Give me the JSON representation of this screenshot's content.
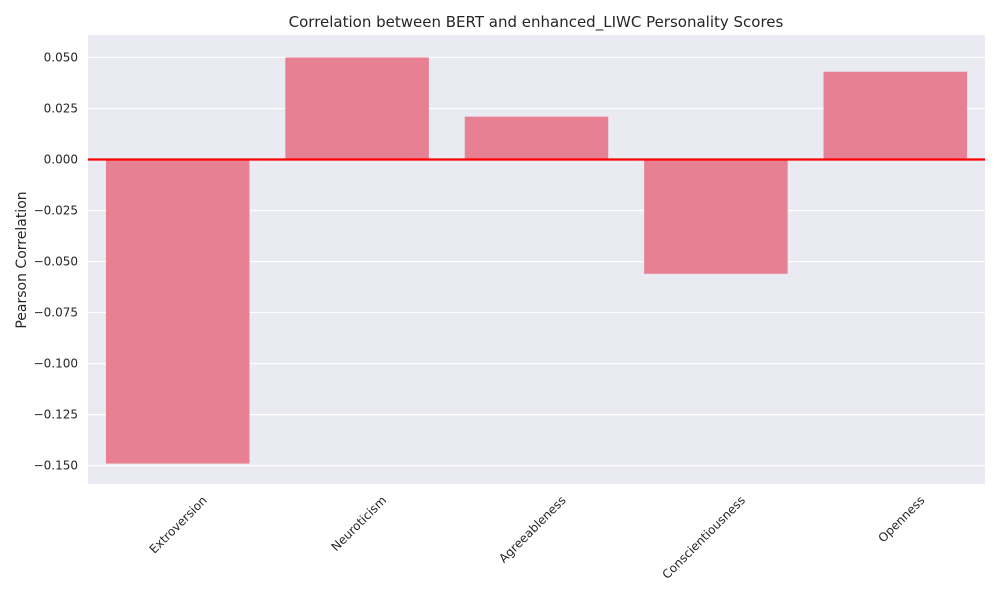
{
  "chart_data": {
    "type": "bar",
    "title": "Correlation between BERT and enhanced_LIWC Personality Scores",
    "xlabel": "",
    "ylabel": "Pearson Correlation",
    "categories": [
      "Extroversion",
      "Neuroticism",
      "Agreeableness",
      "Conscientiousness",
      "Openness"
    ],
    "values": [
      -0.149,
      0.05,
      0.021,
      -0.056,
      0.043
    ],
    "ylim": [
      -0.159,
      0.061
    ],
    "yticks": [
      0.05,
      0.025,
      0.0,
      -0.025,
      -0.05,
      -0.075,
      -0.1,
      -0.125,
      -0.15
    ],
    "ytick_labels": [
      "0.050",
      "0.025",
      "0.000",
      "−0.025",
      "−0.050",
      "−0.075",
      "−0.100",
      "−0.125",
      "−0.150"
    ],
    "reference_line": {
      "y": 0,
      "color": "#ff0000"
    },
    "bar_color": "#e88093",
    "background_color": "#eaeaf2",
    "grid": true,
    "legend": "none"
  }
}
